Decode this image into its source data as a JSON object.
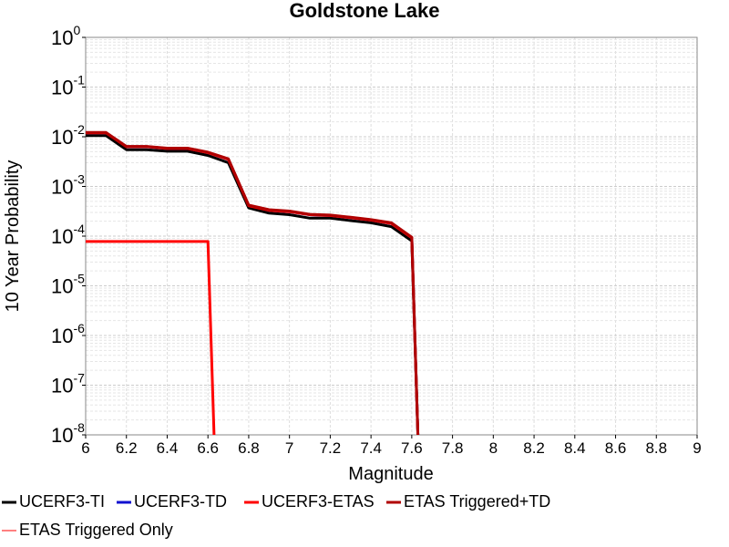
{
  "chart_data": {
    "type": "line",
    "title": "Goldstone Lake",
    "xlabel": "Magnitude",
    "ylabel": "10 Year Probability",
    "xlim": [
      6,
      9
    ],
    "ylim": [
      1e-08,
      1
    ],
    "yscale": "log",
    "grid": true,
    "legend_position": "bottom",
    "x_ticks": [
      "6",
      "6.2",
      "6.4",
      "6.6",
      "6.8",
      "7",
      "7.2",
      "7.4",
      "7.6",
      "7.8",
      "8",
      "8.2",
      "8.4",
      "8.6",
      "8.8",
      "9"
    ],
    "y_ticks": [
      {
        "base": "10",
        "exp": "0"
      },
      {
        "base": "10",
        "exp": "-1"
      },
      {
        "base": "10",
        "exp": "-2"
      },
      {
        "base": "10",
        "exp": "-3"
      },
      {
        "base": "10",
        "exp": "-4"
      },
      {
        "base": "10",
        "exp": "-5"
      },
      {
        "base": "10",
        "exp": "-6"
      },
      {
        "base": "10",
        "exp": "-7"
      },
      {
        "base": "10",
        "exp": "-8"
      }
    ],
    "series": [
      {
        "name": "UCERF3-TI",
        "color": "#000000",
        "x": [
          6.0,
          6.1,
          6.2,
          6.3,
          6.4,
          6.5,
          6.6,
          6.7,
          6.8,
          6.9,
          7.0,
          7.1,
          7.2,
          7.3,
          7.4,
          7.5,
          7.6,
          7.63
        ],
        "y": [
          0.0105,
          0.0105,
          0.0055,
          0.0055,
          0.0051,
          0.0051,
          0.0042,
          0.003,
          0.00037,
          0.00029,
          0.00027,
          0.00023,
          0.00023,
          0.000205,
          0.000185,
          0.000155,
          8e-05,
          1e-08
        ]
      },
      {
        "name": "UCERF3-TD",
        "color": "#1010d0",
        "x": [
          6.0,
          6.1,
          6.2,
          6.3,
          6.4,
          6.5,
          6.6,
          6.7,
          6.8,
          6.9,
          7.0,
          7.1,
          7.2,
          7.3,
          7.4,
          7.5,
          7.6,
          7.63
        ],
        "y": [
          0.012,
          0.012,
          0.0063,
          0.0063,
          0.0058,
          0.0058,
          0.0048,
          0.0035,
          0.00041,
          0.00033,
          0.00031,
          0.00027,
          0.00026,
          0.000235,
          0.00021,
          0.00018,
          9.25e-05,
          1e-08
        ]
      },
      {
        "name": "UCERF3-ETAS",
        "color": "#ff0000",
        "x": [
          6.0,
          6.1,
          6.2,
          6.3,
          6.4,
          6.5,
          6.6,
          6.7,
          6.8,
          6.9,
          7.0,
          7.1,
          7.2,
          7.3,
          7.4,
          7.5,
          7.6,
          7.63
        ],
        "y": [
          0.012,
          0.012,
          0.0063,
          0.0063,
          0.0058,
          0.0058,
          0.0048,
          0.0035,
          0.00041,
          0.00033,
          0.00031,
          0.00027,
          0.00026,
          0.000235,
          0.00021,
          0.00018,
          9.25e-05,
          1e-08
        ]
      },
      {
        "name": "ETAS Triggered+TD",
        "color": "#b00000",
        "x": [
          6.0,
          6.1,
          6.2,
          6.3,
          6.4,
          6.5,
          6.6,
          6.7,
          6.8,
          6.9,
          7.0,
          7.1,
          7.2,
          7.3,
          7.4,
          7.5,
          7.6,
          7.63
        ],
        "y": [
          0.0122,
          0.0122,
          0.0064,
          0.0064,
          0.0059,
          0.0059,
          0.0049,
          0.0036,
          0.00042,
          0.00034,
          0.00032,
          0.000275,
          0.000265,
          0.00024,
          0.000215,
          0.000185,
          9.5e-05,
          1e-08
        ]
      },
      {
        "name": "ETAS Triggered Only",
        "color": "#ff0000",
        "legend_color": "#ff8080",
        "x": [
          6.0,
          6.1,
          6.2,
          6.3,
          6.4,
          6.5,
          6.6,
          6.63
        ],
        "y": [
          7.8e-05,
          7.8e-05,
          7.8e-05,
          7.8e-05,
          7.8e-05,
          7.8e-05,
          7.8e-05,
          1e-08
        ]
      }
    ]
  }
}
